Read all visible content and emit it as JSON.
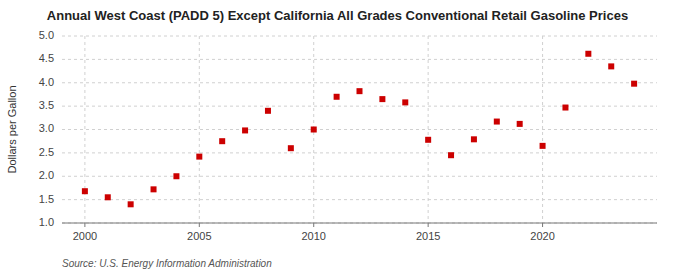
{
  "chart_data": {
    "type": "scatter",
    "title": "Annual West Coast (PADD 5) Except California All Grades Conventional Retail Gasoline Prices",
    "ylabel": "Dollars per Gallon",
    "source": "Source: U.S. Energy Information Administration",
    "x": [
      2000,
      2001,
      2002,
      2003,
      2004,
      2005,
      2006,
      2007,
      2008,
      2009,
      2010,
      2011,
      2012,
      2013,
      2014,
      2015,
      2016,
      2017,
      2018,
      2019,
      2020,
      2021,
      2022,
      2023,
      2024
    ],
    "values": [
      1.68,
      1.55,
      1.4,
      1.72,
      2.0,
      2.42,
      2.75,
      2.98,
      3.4,
      2.6,
      3.0,
      3.7,
      3.82,
      3.65,
      3.58,
      2.78,
      2.45,
      2.79,
      3.17,
      3.12,
      2.65,
      3.47,
      4.62,
      4.35,
      3.98
    ],
    "color": "#cc0000",
    "marker": "square",
    "grid": true,
    "xlim": [
      1999,
      2025
    ],
    "ylim": [
      1.0,
      5.0
    ],
    "xticks": [
      2000,
      2005,
      2010,
      2015,
      2020
    ],
    "yticks": [
      {
        "value": 1,
        "label": "1.0"
      },
      1.5,
      {
        "value": 2,
        "label": "2.0"
      },
      2.5,
      {
        "value": 3,
        "label": "3.0"
      },
      3.5,
      {
        "value": 4,
        "label": "4.0"
      },
      4.5,
      {
        "value": 5,
        "label": "5.0"
      }
    ]
  }
}
